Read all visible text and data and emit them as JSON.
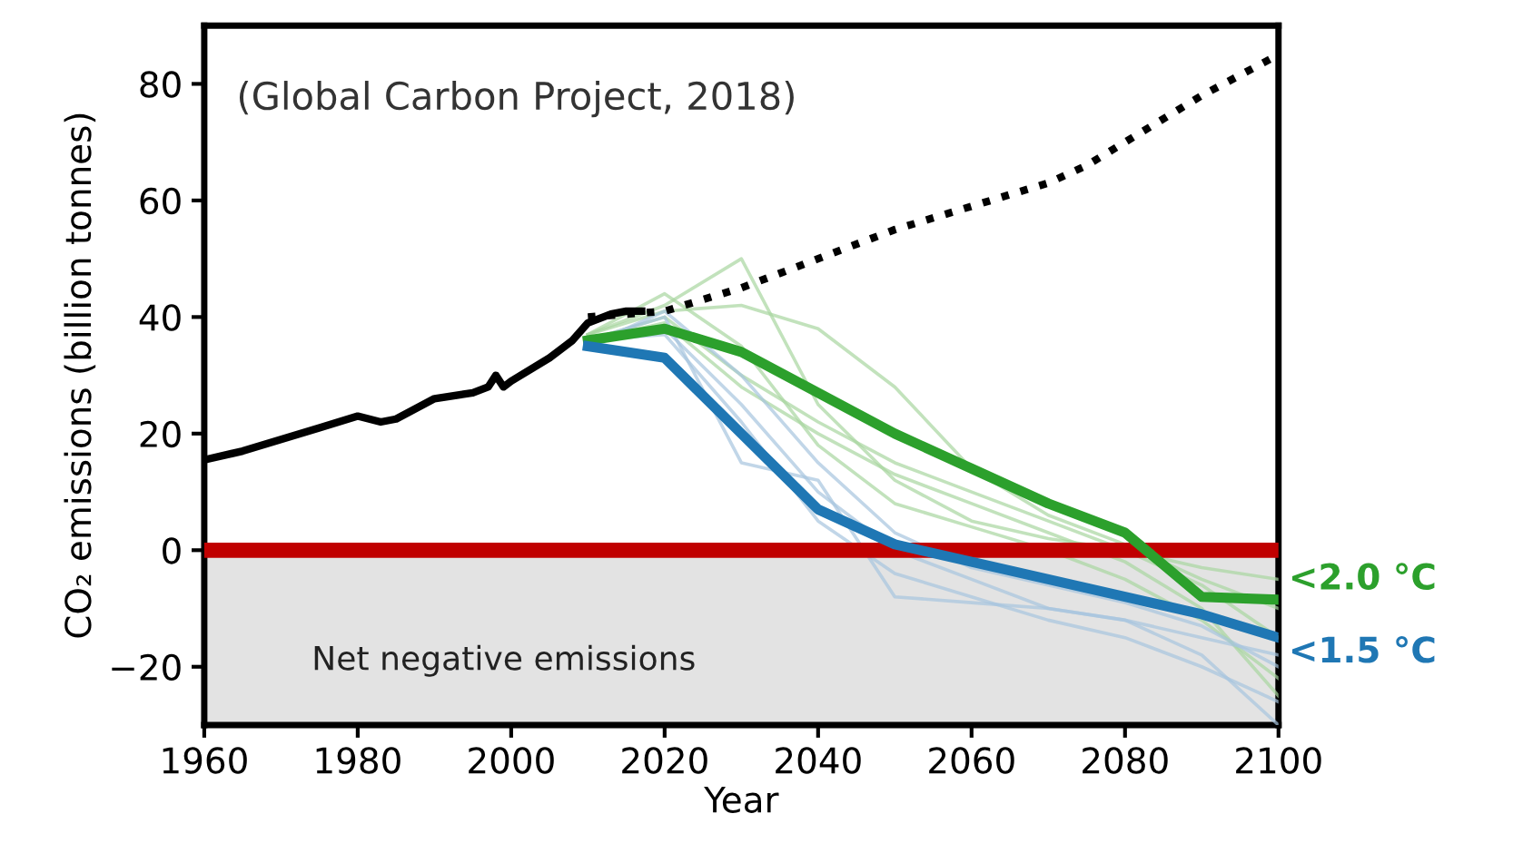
{
  "chart_data": {
    "type": "line",
    "xlabel": "Year",
    "ylabel": "CO₂ emissions (billion tonnes)",
    "xlim": [
      1960,
      2100
    ],
    "ylim": [
      -30,
      90
    ],
    "xticks": [
      1960,
      1980,
      2000,
      2020,
      2040,
      2060,
      2080,
      2100
    ],
    "yticks": [
      {
        "value": -20,
        "label": "−20"
      },
      0,
      20,
      40,
      60,
      80
    ],
    "grid": false,
    "legend": false,
    "annotations": [
      "(Global Carbon Project, 2018)"
    ],
    "ref_lines": [
      {
        "axis": "y",
        "value": 0,
        "color": "#c00000"
      }
    ],
    "bands": [
      {
        "axis": "y",
        "from": -30,
        "to": 0,
        "label": "Net negative emissions",
        "color": "#e3e3e3"
      }
    ],
    "series": [
      {
        "color": "#a8d5a0",
        "x": [
          2010,
          2020,
          2030,
          2040,
          2050,
          2060,
          2070,
          2080,
          2090,
          2100
        ],
        "values": [
          37,
          42,
          50,
          25,
          12,
          5,
          2,
          0,
          -3,
          -5
        ]
      },
      {
        "color": "#a8d5a0",
        "x": [
          2010,
          2020,
          2030,
          2040,
          2050,
          2060,
          2070,
          2080,
          2090,
          2100
        ],
        "values": [
          37,
          41,
          42,
          38,
          28,
          14,
          6,
          1,
          -5,
          -10
        ]
      },
      {
        "color": "#a8d5a0",
        "x": [
          2010,
          2020,
          2030,
          2040,
          2050,
          2060,
          2070,
          2080,
          2090,
          2100
        ],
        "values": [
          36,
          40,
          30,
          22,
          15,
          10,
          5,
          0,
          -6,
          -15
        ]
      },
      {
        "color": "#a8d5a0",
        "x": [
          2010,
          2020,
          2030,
          2040,
          2050,
          2060,
          2070,
          2080,
          2090,
          2100
        ],
        "values": [
          37,
          44,
          35,
          18,
          8,
          4,
          0,
          -5,
          -12,
          -22
        ]
      },
      {
        "color": "#a8d5a0",
        "x": [
          2010,
          2020,
          2030,
          2040,
          2050,
          2060,
          2070,
          2080,
          2090,
          2100
        ],
        "values": [
          36,
          39,
          28,
          20,
          13,
          8,
          3,
          -2,
          -10,
          -25
        ]
      },
      {
        "color": "#a6c4de",
        "x": [
          2010,
          2020,
          2030,
          2040,
          2050,
          2060,
          2070,
          2080,
          2090,
          2100
        ],
        "values": [
          36,
          40,
          15,
          12,
          -8,
          -9,
          -10,
          -12,
          -15,
          -18
        ]
      },
      {
        "color": "#a6c4de",
        "x": [
          2010,
          2020,
          2030,
          2040,
          2050,
          2060,
          2070,
          2080,
          2090,
          2100
        ],
        "values": [
          36,
          38,
          25,
          10,
          0,
          -5,
          -10,
          -12,
          -18,
          -30
        ]
      },
      {
        "color": "#a6c4de",
        "x": [
          2010,
          2020,
          2030,
          2040,
          2050,
          2060,
          2070,
          2080,
          2090,
          2100
        ],
        "values": [
          35,
          41,
          30,
          15,
          3,
          -3,
          -6,
          -9,
          -13,
          -20
        ]
      },
      {
        "color": "#a6c4de",
        "x": [
          2010,
          2020,
          2030,
          2040,
          2050,
          2060,
          2070,
          2080,
          2090,
          2100
        ],
        "values": [
          36,
          37,
          22,
          5,
          -4,
          -8,
          -12,
          -15,
          -20,
          -26
        ]
      },
      {
        "color": "#000000",
        "line_style": "solid",
        "x": [
          1960,
          1965,
          1970,
          1975,
          1980,
          1983,
          1985,
          1990,
          1995,
          1997,
          1998,
          1999,
          2000,
          2005,
          2008,
          2010,
          2013,
          2015,
          2017
        ],
        "values": [
          15.5,
          17,
          19,
          21,
          23,
          22,
          22.5,
          26,
          27,
          28,
          30,
          28,
          29,
          33,
          36,
          39,
          40.5,
          41,
          41
        ]
      },
      {
        "color": "#000000",
        "line_style": "dotted",
        "x": [
          2010,
          2020,
          2030,
          2040,
          2050,
          2060,
          2070,
          2075,
          2080,
          2090,
          2100
        ],
        "values": [
          40,
          41,
          45,
          50,
          55,
          59,
          63,
          66,
          70,
          78,
          85
        ]
      },
      {
        "name": "<2.0 °C",
        "color": "#2ca02c",
        "x": [
          2010,
          2020,
          2030,
          2040,
          2050,
          2060,
          2070,
          2080,
          2090,
          2100
        ],
        "values": [
          36,
          38,
          34,
          27,
          20,
          14,
          8,
          3,
          -8,
          -8.5
        ]
      },
      {
        "name": "<1.5 °C",
        "color": "#1f77b4",
        "x": [
          2010,
          2020,
          2030,
          2040,
          2050,
          2060,
          2070,
          2080,
          2090,
          2100
        ],
        "values": [
          35,
          33,
          20,
          7,
          1,
          -2,
          -5,
          -8,
          -11,
          -15
        ]
      }
    ]
  }
}
